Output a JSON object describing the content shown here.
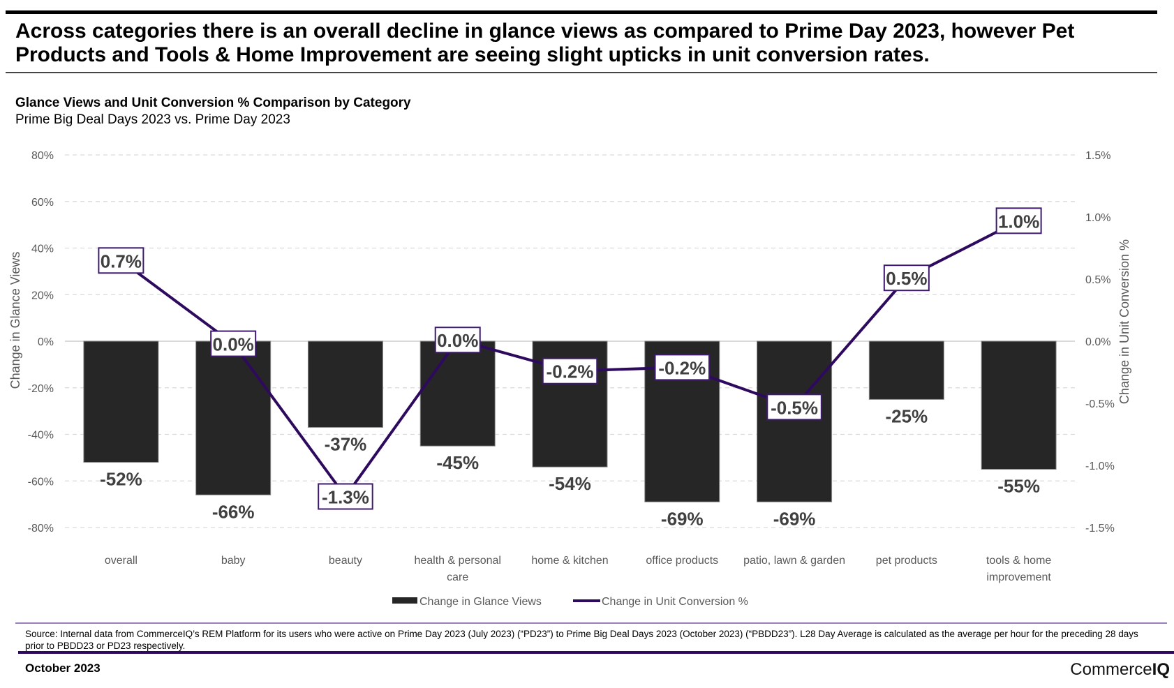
{
  "header": {
    "headline": "Across categories there is an overall decline in glance views as compared to Prime Day 2023, however Pet Products and Tools & Home Improvement are seeing slight upticks in unit conversion rates."
  },
  "chart_data": {
    "type": "bar+line",
    "title": "Glance Views and Unit Conversion % Comparison by Category",
    "subtitle": "Prime Big Deal Days 2023 vs. Prime Day 2023",
    "categories": [
      "overall",
      "baby",
      "beauty",
      "health & personal care",
      "home & kitchen",
      "office products",
      "patio, lawn & garden",
      "pet products",
      "tools & home improvement"
    ],
    "category_lines": [
      [
        "overall"
      ],
      [
        "baby"
      ],
      [
        "beauty"
      ],
      [
        "health & personal",
        "care"
      ],
      [
        "home & kitchen"
      ],
      [
        "office products"
      ],
      [
        "patio, lawn & garden"
      ],
      [
        "pet products"
      ],
      [
        "tools & home",
        "improvement"
      ]
    ],
    "series": [
      {
        "name": "Change in Glance Views",
        "type": "bar",
        "axis": "left",
        "color": "#262626",
        "values": [
          -52,
          -66,
          -37,
          -45,
          -54,
          -69,
          -69,
          -25,
          -55
        ],
        "labels": [
          "-52%",
          "-66%",
          "-37%",
          "-45%",
          "-54%",
          "-69%",
          "-69%",
          "-25%",
          "-55%"
        ]
      },
      {
        "name": "Change in Unit Conversion %",
        "type": "line",
        "axis": "right",
        "color": "#2e0a5e",
        "values": [
          0.65,
          -0.02,
          -1.25,
          0.01,
          -0.24,
          -0.21,
          -0.53,
          0.51,
          0.97
        ],
        "labels": [
          "0.7%",
          "0.0%",
          "-1.3%",
          "0.0%",
          "-0.2%",
          "-0.2%",
          "-0.5%",
          "0.5%",
          "1.0%"
        ]
      }
    ],
    "ylabel": "Change in Glance Views",
    "y2label": "Change in Unit Conversion %",
    "ylim": [
      -80,
      80
    ],
    "y2lim": [
      -1.5,
      1.5
    ],
    "yticks": [
      "80%",
      "60%",
      "40%",
      "20%",
      "0%",
      "-20%",
      "-40%",
      "-60%",
      "-80%"
    ],
    "ytick_values": [
      80,
      60,
      40,
      20,
      0,
      -20,
      -40,
      -60,
      -80
    ],
    "y2ticks": [
      "1.5%",
      "1.0%",
      "0.5%",
      "0.0%",
      "-0.5%",
      "-1.0%",
      "-1.5%"
    ],
    "y2tick_values": [
      1.5,
      1.0,
      0.5,
      0.0,
      -0.5,
      -1.0,
      -1.5
    ],
    "grid": true,
    "legend_position": "bottom-center"
  },
  "footer": {
    "source": "Source: Internal data from CommerceIQ’s REM Platform for its users who were active on Prime Day 2023 (July 2023) (“PD23”) to Prime Big Deal Days 2023 (October 2023) (“PBDD23”). L28 Day Average is calculated as the average per hour for the preceding 28 days prior to PBDD23 or PD23 respectively.",
    "date": "October 2023",
    "logo_regular": "Commerce",
    "logo_bold": "IQ"
  }
}
